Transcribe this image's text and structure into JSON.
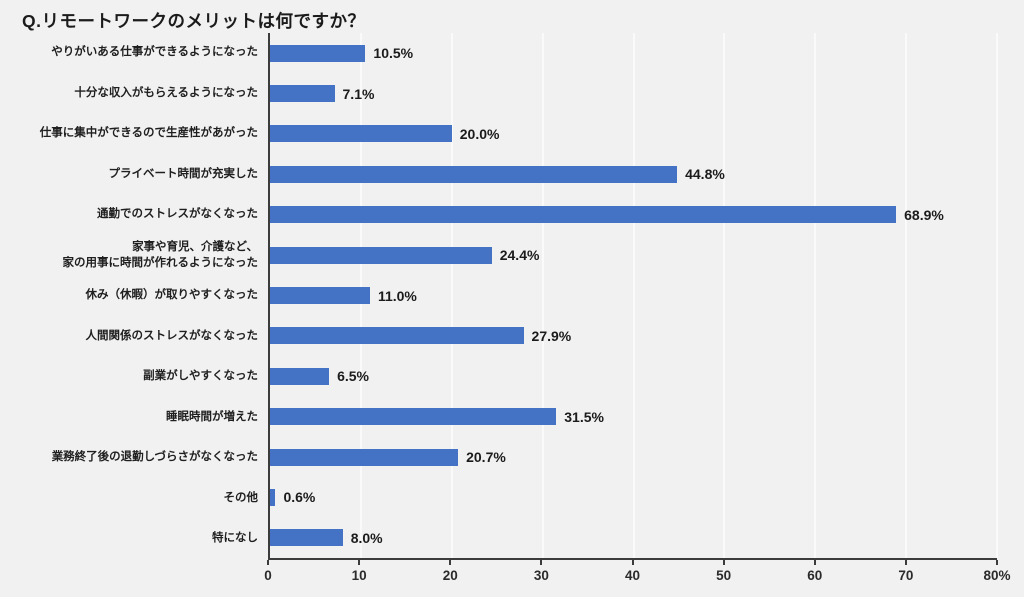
{
  "colors": {
    "background": "#f1f1f1",
    "bar": "#4472C4",
    "gridline": "#fafafa",
    "axis": "#3c3c3c",
    "text": "#1b1b1b"
  },
  "chart_data": {
    "type": "bar",
    "orientation": "horizontal",
    "title": "Q.リモートワークのメリットは何ですか？",
    "categories": [
      "やりがいある仕事ができるようになった",
      "十分な収入がもらえるようになった",
      "仕事に集中ができるので生産性があがった",
      "プライベート時間が充実した",
      "通勤でのストレスがなくなった",
      "家事や育児、介護など、\n家の用事に時間が作れるようになった",
      "休み（休暇）が取りやすくなった",
      "人間関係のストレスがなくなった",
      "副業がしやすくなった",
      "睡眠時間が増えた",
      "業務終了後の退勤しづらさがなくなった",
      "その他",
      "特になし"
    ],
    "values": [
      10.5,
      7.1,
      20.0,
      44.8,
      68.9,
      24.4,
      11.0,
      27.9,
      6.5,
      31.5,
      20.7,
      0.6,
      8.0
    ],
    "value_labels": [
      "10.5%",
      "7.1%",
      "20.0%",
      "44.8%",
      "68.9%",
      "24.4%",
      "11.0%",
      "27.9%",
      "6.5%",
      "31.5%",
      "20.7%",
      "0.6%",
      "8.0%"
    ],
    "xlabel": "",
    "ylabel": "",
    "xlim": [
      0,
      80
    ],
    "x_tick_values": [
      0,
      10,
      20,
      30,
      40,
      50,
      60,
      70,
      80
    ],
    "x_tick_labels": [
      "0",
      "10",
      "20",
      "30",
      "40",
      "50",
      "60",
      "70",
      "80%"
    ],
    "grid": "vertical",
    "legend_position": "none"
  }
}
